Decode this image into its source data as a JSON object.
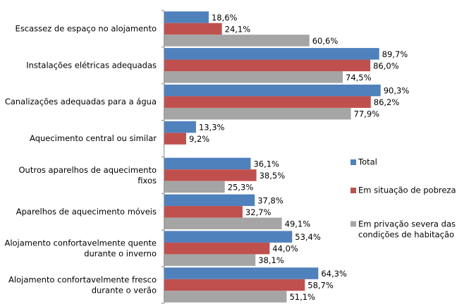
{
  "chart_data": {
    "type": "bar",
    "orientation": "horizontal",
    "categories": [
      "Escassez de espaço no alojamento",
      "Instalações elétricas adequadas",
      "Canalizações adequadas para a água",
      "Aquecimento central ou similar",
      "Outros aparelhos de aquecimento\nfixos",
      "Aparelhos de aquecimento móveis",
      "Alojamento confortavelmente quente\ndurante o inverno",
      "Alojamento confortavelmente fresco\ndurante o verão"
    ],
    "series": [
      {
        "name": "Total",
        "color": "#4f81bd",
        "values": [
          18.6,
          89.7,
          90.3,
          13.3,
          36.1,
          37.8,
          53.4,
          64.3
        ],
        "value_labels": [
          "18,6%",
          "89,7%",
          "90,3%",
          "13,3%",
          "36,1%",
          "37,8%",
          "53,4%",
          "64,3%"
        ]
      },
      {
        "name": "Em situação de pobreza",
        "color": "#c0504d",
        "values": [
          24.1,
          86.0,
          86.2,
          9.2,
          38.5,
          32.7,
          44.0,
          58.7
        ],
        "value_labels": [
          "24,1%",
          "86,0%",
          "86,2%",
          "9,2%",
          "38,5%",
          "32,7%",
          "44,0%",
          "58,7%"
        ]
      },
      {
        "name": "Em privação severa das\ncondições de habitação",
        "color": "#a5a5a5",
        "values": [
          60.6,
          74.5,
          77.9,
          null,
          25.3,
          49.1,
          38.1,
          51.1
        ],
        "value_labels": [
          "60,6%",
          "74,5%",
          "77,9%",
          null,
          "25,3%",
          "49,1%",
          "38,1%",
          "51,1%"
        ]
      }
    ],
    "xlim": [
      0,
      100
    ],
    "legend": "right"
  }
}
